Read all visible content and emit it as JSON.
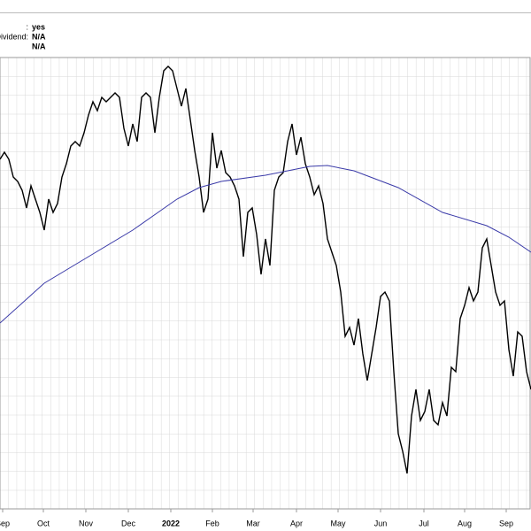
{
  "info": [
    {
      "label": ":",
      "value": "yes"
    },
    {
      "label": "Dividend:",
      "value": "N/A"
    },
    {
      "value": "N/A"
    }
  ],
  "chart_data": {
    "type": "line",
    "xlim": [
      0,
      120
    ],
    "ylim": [
      25,
      535
    ],
    "xticks": [
      {
        "value": 0.6,
        "label": "Sep"
      },
      {
        "value": 9.8,
        "label": "Oct"
      },
      {
        "value": 19.4,
        "label": "Nov"
      },
      {
        "value": 29,
        "label": "Dec"
      },
      {
        "value": 38.6,
        "label": "2022"
      },
      {
        "value": 48,
        "label": "Feb"
      },
      {
        "value": 57.2,
        "label": "Mar"
      },
      {
        "value": 67,
        "label": "Apr"
      },
      {
        "value": 76.4,
        "label": "May"
      },
      {
        "value": 86,
        "label": "Jun"
      },
      {
        "value": 95.8,
        "label": "Jul"
      },
      {
        "value": 105,
        "label": "Aug"
      },
      {
        "value": 114.4,
        "label": "Sep"
      }
    ],
    "series": [
      {
        "color": "#000000",
        "x": [
          0,
          1,
          2,
          3,
          4,
          5,
          6,
          7,
          8,
          9,
          10,
          11,
          12,
          13,
          14,
          15,
          16,
          17,
          18,
          19,
          20,
          21,
          22,
          23,
          24,
          25,
          26,
          27,
          28,
          29,
          30,
          31,
          32,
          33,
          34,
          35,
          36,
          37,
          38,
          39,
          40,
          41,
          42,
          43,
          44,
          45,
          46,
          47,
          48,
          49,
          50,
          51,
          52,
          53,
          54,
          55,
          56,
          57,
          58,
          59,
          60,
          61,
          62,
          63,
          64,
          65,
          66,
          67,
          68,
          69,
          70,
          71,
          72,
          73,
          74,
          75,
          76,
          77,
          78,
          79,
          80,
          81,
          82,
          83,
          84,
          85,
          86,
          87,
          88,
          89,
          90,
          91,
          92,
          93,
          94,
          95,
          96,
          97,
          98,
          99,
          100,
          101,
          102,
          103,
          104,
          105,
          106,
          107,
          108,
          109,
          110,
          111,
          112,
          113,
          114,
          115,
          116,
          117,
          118,
          119,
          120
        ],
        "values": [
          420,
          428,
          420,
          400,
          395,
          385,
          365,
          390,
          375,
          360,
          340,
          375,
          360,
          370,
          400,
          415,
          435,
          440,
          435,
          450,
          470,
          485,
          475,
          490,
          485,
          490,
          495,
          490,
          455,
          435,
          460,
          440,
          490,
          495,
          490,
          450,
          490,
          520,
          525,
          520,
          500,
          480,
          500,
          465,
          430,
          400,
          360,
          375,
          450,
          410,
          430,
          405,
          400,
          390,
          375,
          310,
          360,
          365,
          335,
          290,
          330,
          300,
          385,
          400,
          405,
          440,
          460,
          425,
          445,
          415,
          400,
          380,
          390,
          370,
          330,
          315,
          300,
          270,
          220,
          230,
          210,
          240,
          200,
          170,
          200,
          230,
          265,
          270,
          260,
          180,
          110,
          90,
          65,
          130,
          160,
          125,
          135,
          160,
          125,
          120,
          145,
          130,
          185,
          180,
          240,
          255,
          275,
          260,
          270,
          320,
          330,
          300,
          270,
          255,
          260,
          205,
          175,
          225,
          220,
          180,
          160
        ]
      },
      {
        "color": "#3a3aa8",
        "x": [
          0,
          10,
          20,
          30,
          40,
          45,
          50,
          60,
          70,
          74,
          80,
          90,
          100,
          110,
          115,
          120
        ],
        "values": [
          235,
          280,
          310,
          340,
          375,
          388,
          395,
          402,
          412,
          413,
          407,
          388,
          360,
          345,
          332,
          315
        ]
      }
    ]
  }
}
